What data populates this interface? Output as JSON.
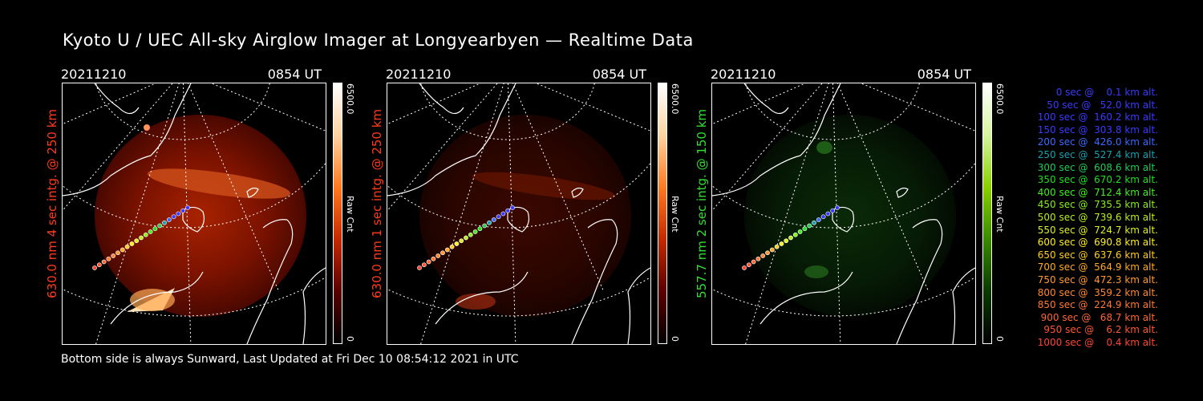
{
  "title": "Kyoto U / UEC All-sky Airglow Imager at Longyearbyen — Realtime Data",
  "footer": "Bottom side is always Sunward, Last Updated at Fri Dec 10 08:54:12 2021 in UTC",
  "panels": [
    {
      "date": "20211210",
      "time": "0854 UT",
      "label": "630.0 nm 4 sec intg. @ 250 km",
      "label_color": "#ff3a1a",
      "colorbar": {
        "max": "6500.0",
        "min": "0",
        "unit": "Raw Cnt",
        "gradient": [
          "#000000",
          "#5a0000",
          "#c42a00",
          "#ff7a20",
          "#ffd2a0",
          "#ffffff"
        ]
      }
    },
    {
      "date": "20211210",
      "time": "0854 UT",
      "label": "630.0 nm 1 sec intg. @ 250 km",
      "label_color": "#ff3a1a",
      "colorbar": {
        "max": "6500.0",
        "min": "0",
        "unit": "Raw Cnt",
        "gradient": [
          "#000000",
          "#5a0000",
          "#c42a00",
          "#ff7a20",
          "#ffd2a0",
          "#ffffff"
        ]
      }
    },
    {
      "date": "20211210",
      "time": "0854 UT",
      "label": "557.7 nm 2 sec intg. @ 150 km",
      "label_color": "#33dd33",
      "colorbar": {
        "max": "6500.0",
        "min": "0",
        "unit": "Raw Cnt",
        "gradient": [
          "#000000",
          "#0a3a00",
          "#3a8a00",
          "#8ad000",
          "#d6f5a0",
          "#ffffff"
        ]
      }
    }
  ],
  "legend": [
    {
      "text": "0 sec @    0.1 km alt.",
      "color": "#3a3aff"
    },
    {
      "text": "50 sec @   52.0 km alt.",
      "color": "#3a3aff"
    },
    {
      "text": "100 sec @  160.2 km alt.",
      "color": "#3a3aff"
    },
    {
      "text": "150 sec @  303.8 km alt.",
      "color": "#3a3aff"
    },
    {
      "text": "200 sec @  426.0 km alt.",
      "color": "#3a6aff"
    },
    {
      "text": "250 sec @  527.4 km alt.",
      "color": "#1aa0b0"
    },
    {
      "text": "300 sec @  608.6 km alt.",
      "color": "#22cc55"
    },
    {
      "text": "350 sec @  670.2 km alt.",
      "color": "#22dd22"
    },
    {
      "text": "400 sec @  712.4 km alt.",
      "color": "#44ee22"
    },
    {
      "text": "450 sec @  735.5 km alt.",
      "color": "#88ee22"
    },
    {
      "text": "500 sec @  739.6 km alt.",
      "color": "#bbee22"
    },
    {
      "text": "550 sec @  724.7 km alt.",
      "color": "#ddee22"
    },
    {
      "text": "600 sec @  690.8 km alt.",
      "color": "#ffee22"
    },
    {
      "text": "650 sec @  637.6 km alt.",
      "color": "#ffcc22"
    },
    {
      "text": "700 sec @  564.9 km alt.",
      "color": "#ffaa22"
    },
    {
      "text": "750 sec @  472.3 km alt.",
      "color": "#ff9933"
    },
    {
      "text": "800 sec @  359.2 km alt.",
      "color": "#ff8833"
    },
    {
      "text": "850 sec @  224.9 km alt.",
      "color": "#ff7733"
    },
    {
      "text": "900 sec @   68.7 km alt.",
      "color": "#ff6633"
    },
    {
      "text": "950 sec @    6.2 km alt.",
      "color": "#ff5533"
    },
    {
      "text": "1000 sec @    0.4 km alt.",
      "color": "#ff4433"
    }
  ]
}
